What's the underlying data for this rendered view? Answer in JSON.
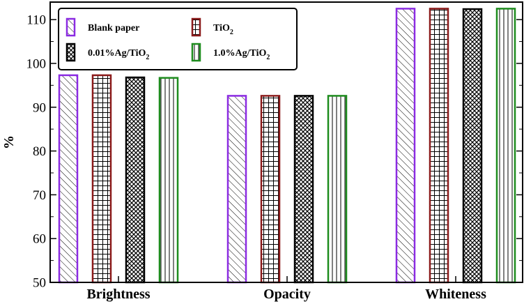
{
  "chart_data": {
    "type": "bar",
    "title": "",
    "xlabel": "",
    "ylabel": "%",
    "ylim": [
      50,
      114
    ],
    "yticks": [
      50,
      60,
      70,
      80,
      90,
      100,
      110
    ],
    "categories": [
      "Brightness",
      "Opacity",
      "Whiteness"
    ],
    "series": [
      {
        "name": "Blank paper",
        "name_main": "Blank paper",
        "name_sub": "",
        "name_tail": "",
        "color": "#8B2BE2",
        "pattern": "diag",
        "values": [
          97.3,
          92.6,
          112.5
        ]
      },
      {
        "name": "TiO2",
        "name_main": "TiO",
        "name_sub": "2",
        "name_tail": "",
        "color": "#8B1A1A",
        "pattern": "grid",
        "values": [
          97.3,
          92.6,
          112.5
        ]
      },
      {
        "name": "0.01%Ag/TiO2",
        "name_main": "0.01%Ag/TiO",
        "name_sub": "2",
        "name_tail": "",
        "color": "#000000",
        "pattern": "cross",
        "values": [
          96.8,
          92.6,
          112.4
        ]
      },
      {
        "name": "1.0%Ag/TiO2",
        "name_main": "1.0%Ag/TiO",
        "name_sub": "2",
        "name_tail": "",
        "color": "#1E8C1E",
        "pattern": "vert",
        "values": [
          96.7,
          92.6,
          112.5
        ]
      }
    ],
    "legend": {
      "position": "top-left",
      "columns": 2,
      "frame": true
    },
    "grid": false
  }
}
